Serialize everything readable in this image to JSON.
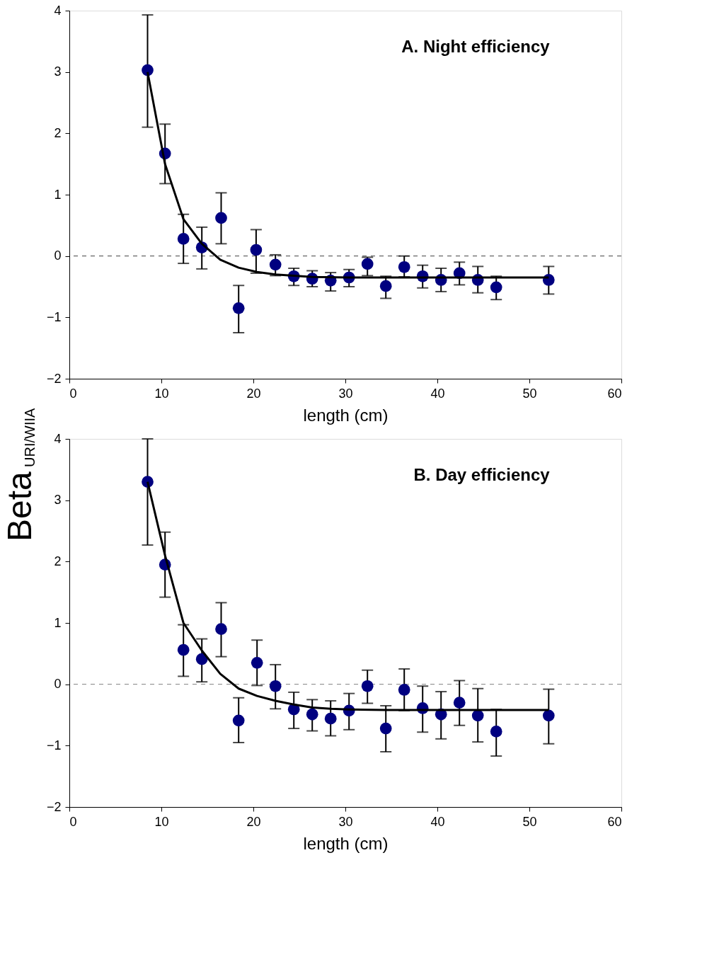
{
  "chart_data": [
    {
      "type": "scatter",
      "title": "A. Night efficiency",
      "ylabel": "Beta$_{URI/WIIA}$",
      "xlabel": "length (cm)",
      "xlim": [
        0,
        60
      ],
      "xticks": [
        0,
        10,
        20,
        30,
        40,
        50,
        60
      ],
      "ylim": [
        -2,
        4
      ],
      "yticks": [
        -2,
        -1,
        0,
        1,
        2,
        3,
        4
      ],
      "grid": false,
      "ref_lines": [
        {
          "axis": "y",
          "value": 0,
          "color": "#404040",
          "line_style": "dashed"
        }
      ],
      "series": [
        {
          "type": "line",
          "marker": "none",
          "color": "#000000",
          "line_style": "solid",
          "x": [
            8.5,
            10.4,
            12.4,
            14.4,
            16.4,
            18.4,
            20.4,
            22.4,
            24.4,
            26.4,
            30.4,
            52.1
          ],
          "values": [
            3.0,
            1.5,
            0.6,
            0.2,
            -0.06,
            -0.19,
            -0.26,
            -0.3,
            -0.32,
            -0.34,
            -0.35,
            -0.35
          ]
        },
        {
          "marker": "circle",
          "color": "#000080",
          "x": [
            8.5,
            10.4,
            12.4,
            14.4,
            16.5,
            18.4,
            20.3,
            22.4,
            24.4,
            26.4,
            28.4,
            30.4,
            32.4,
            34.4,
            36.4,
            38.4,
            40.4,
            42.4,
            44.4,
            46.4,
            52.1
          ],
          "values": [
            3.03,
            1.67,
            0.28,
            0.14,
            0.62,
            -0.85,
            0.1,
            -0.14,
            -0.33,
            -0.37,
            -0.4,
            -0.35,
            -0.13,
            -0.49,
            -0.18,
            -0.33,
            -0.39,
            -0.28,
            -0.39,
            -0.51,
            -0.39
          ],
          "errors": [
            [
              2.1,
              3.93
            ],
            [
              1.18,
              2.15
            ],
            [
              -0.12,
              0.68
            ],
            [
              -0.21,
              0.47
            ],
            [
              0.2,
              1.03
            ],
            [
              -1.25,
              -0.48
            ],
            [
              -0.28,
              0.43
            ],
            [
              -0.32,
              0.02
            ],
            [
              -0.48,
              -0.2
            ],
            [
              -0.5,
              -0.24
            ],
            [
              -0.57,
              -0.27
            ],
            [
              -0.5,
              -0.22
            ],
            [
              -0.32,
              -0.02
            ],
            [
              -0.69,
              -0.33
            ],
            [
              -0.34,
              0.0
            ],
            [
              -0.52,
              -0.15
            ],
            [
              -0.58,
              -0.2
            ],
            [
              -0.47,
              -0.1
            ],
            [
              -0.6,
              -0.17
            ],
            [
              -0.71,
              -0.33
            ],
            [
              -0.62,
              -0.17
            ]
          ]
        }
      ]
    },
    {
      "type": "scatter",
      "title": "B. Day efficiency",
      "xlabel": "length (cm)",
      "xlim": [
        0,
        60
      ],
      "xticks": [
        0,
        10,
        20,
        30,
        40,
        50,
        60
      ],
      "ylim": [
        -2,
        4
      ],
      "yticks": [
        -2,
        -1,
        0,
        1,
        2,
        3,
        4
      ],
      "grid": false,
      "ref_lines": [
        {
          "axis": "y",
          "value": 0,
          "color": "#808080",
          "line_style": "dashed"
        }
      ],
      "series": [
        {
          "type": "line",
          "marker": "none",
          "color": "#000000",
          "line_style": "solid",
          "x": [
            8.5,
            10.4,
            12.4,
            14.4,
            16.4,
            18.4,
            20.4,
            22.4,
            24.4,
            26.4,
            28.4,
            30.4,
            34.4,
            52.1
          ],
          "values": [
            3.3,
            2.1,
            1.0,
            0.55,
            0.17,
            -0.07,
            -0.19,
            -0.27,
            -0.33,
            -0.38,
            -0.4,
            -0.41,
            -0.42,
            -0.42
          ]
        },
        {
          "marker": "circle",
          "color": "#000080",
          "x": [
            8.5,
            10.4,
            12.4,
            14.4,
            16.5,
            18.4,
            20.4,
            22.4,
            24.4,
            26.4,
            28.4,
            30.4,
            32.4,
            34.4,
            36.4,
            38.4,
            40.4,
            42.4,
            44.4,
            46.4,
            52.1
          ],
          "values": [
            3.3,
            1.95,
            0.56,
            0.41,
            0.9,
            -0.59,
            0.35,
            -0.03,
            -0.41,
            -0.49,
            -0.56,
            -0.43,
            -0.03,
            -0.72,
            -0.09,
            -0.39,
            -0.49,
            -0.3,
            -0.51,
            -0.77,
            -0.51
          ],
          "errors": [
            [
              2.27,
              4.0
            ],
            [
              1.42,
              2.48
            ],
            [
              0.13,
              0.97
            ],
            [
              0.04,
              0.74
            ],
            [
              0.45,
              1.33
            ],
            [
              -0.95,
              -0.22
            ],
            [
              -0.02,
              0.72
            ],
            [
              -0.4,
              0.32
            ],
            [
              -0.72,
              -0.13
            ],
            [
              -0.76,
              -0.25
            ],
            [
              -0.84,
              -0.27
            ],
            [
              -0.74,
              -0.15
            ],
            [
              -0.31,
              0.23
            ],
            [
              -1.1,
              -0.35
            ],
            [
              -0.43,
              0.25
            ],
            [
              -0.78,
              -0.03
            ],
            [
              -0.89,
              -0.12
            ],
            [
              -0.67,
              0.06
            ],
            [
              -0.94,
              -0.07
            ],
            [
              -1.17,
              -0.41
            ],
            [
              -0.97,
              -0.08
            ]
          ]
        }
      ]
    }
  ]
}
